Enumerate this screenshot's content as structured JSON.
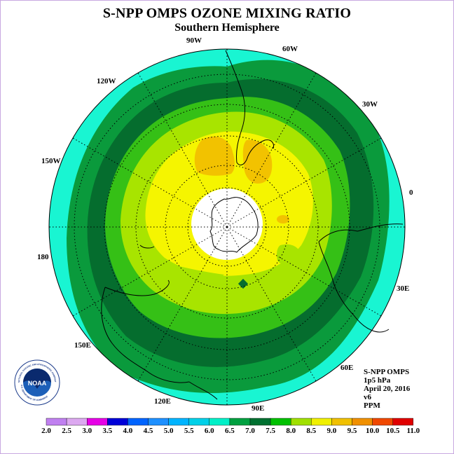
{
  "title": "S-NPP OMPS OZONE MIXING RATIO",
  "subtitle": "Southern Hemisphere",
  "longitude_labels": {
    "w90": "90W",
    "w60": "60W",
    "w120": "120W",
    "w30": "30W",
    "w150": "150W",
    "e0": "0",
    "e180": "180",
    "e30": "30E",
    "e150": "150E",
    "e60": "60E",
    "e120": "120E",
    "e90": "90E"
  },
  "info": {
    "instrument": "S-NPP OMPS",
    "level": "1p5 hPa",
    "date": "April 20, 2016",
    "version": "v6",
    "units": "PPM"
  },
  "logo": {
    "text": "NOAA",
    "ring_text": "NATIONAL OCEANIC AND ATMOSPHERIC ADMINISTRATION",
    "bottom_text": "U.S. DEPARTMENT OF COMMERCE"
  },
  "colorbar": {
    "ticks": [
      "2.0",
      "2.5",
      "3.0",
      "3.5",
      "4.0",
      "4.5",
      "5.0",
      "5.5",
      "6.0",
      "6.5",
      "7.0",
      "7.5",
      "8.0",
      "8.5",
      "9.0",
      "9.5",
      "10.0",
      "10.5",
      "11.0"
    ],
    "colors": [
      "#c080f0",
      "#dca8f0",
      "#e600e6",
      "#0000d8",
      "#0064ff",
      "#1e90ff",
      "#00b4ff",
      "#00d0e8",
      "#00f0c8",
      "#00a040",
      "#007030",
      "#00c000",
      "#a0e000",
      "#f0f000",
      "#f0c000",
      "#f09000",
      "#f04800",
      "#e00000",
      "#805030"
    ]
  },
  "legend_colors": {
    "cyan": "#19f5d2",
    "green_mid": "#0a9a3c",
    "green_dark": "#056d2e",
    "green_light": "#35c016",
    "yellowgreen": "#a8e400",
    "yellow": "#f5f500",
    "orange": "#f2c200"
  }
}
